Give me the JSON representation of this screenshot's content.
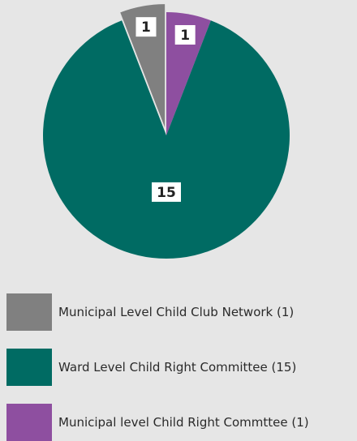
{
  "chart_data": {
    "type": "pie",
    "title": "",
    "slices": [
      {
        "label": "Municipal Level Child Club Network (1)",
        "value": 1,
        "display": "1",
        "color": "#808080"
      },
      {
        "label": "Municipal level Child Right Commttee (1)",
        "value": 1,
        "display": "1",
        "color": "#8e4fa0"
      },
      {
        "label": "Ward Level Child Right Committee (15)",
        "value": 15,
        "display": "15",
        "color": "#006b63"
      }
    ],
    "exploded_slice": "Municipal Level Child Club Network (1)",
    "legend_position": "bottom-left",
    "legend": [
      {
        "label": "Municipal Level Child Club Network (1)",
        "color": "#808080"
      },
      {
        "label": "Ward Level Child Right Committee (15)",
        "color": "#006b63"
      },
      {
        "label": "Municipal level Child Right Commttee (1)",
        "color": "#8e4fa0"
      }
    ]
  }
}
